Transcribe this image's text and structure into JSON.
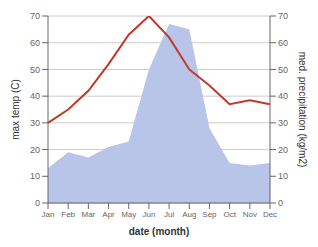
{
  "chart_data": {
    "type": "line",
    "categories": [
      "Jan",
      "Feb",
      "Mar",
      "Apr",
      "May",
      "Jun",
      "Jul",
      "Aug",
      "Sep",
      "Oct",
      "Nov",
      "Dec"
    ],
    "series": [
      {
        "type": "area",
        "color": "#b8c4e8",
        "values": [
          13,
          19,
          17,
          21,
          23,
          50,
          67,
          65,
          28,
          15,
          14,
          15
        ]
      },
      {
        "type": "line",
        "color": "#c0392b",
        "axis": "y2",
        "values": [
          30,
          35,
          42,
          52,
          63,
          70,
          62,
          50,
          44,
          37,
          38.5,
          37
        ]
      }
    ],
    "xlabel": "date (month)",
    "ylabel": "max temp (C)",
    "y2label": "med. precipitation (kg/m2)",
    "ylim": [
      0,
      70
    ],
    "yticks": [
      0,
      10,
      20,
      30,
      40,
      50,
      60,
      70
    ],
    "y2lim": [
      0,
      70
    ],
    "y2ticks": [
      0,
      10,
      20,
      30,
      40,
      50,
      60,
      70
    ],
    "grid": true
  }
}
